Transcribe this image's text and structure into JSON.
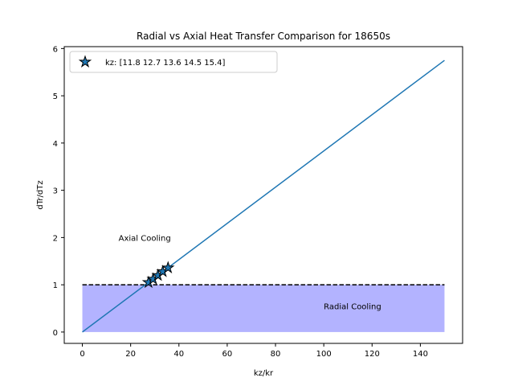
{
  "chart_data": {
    "type": "line",
    "title": "Radial vs Axial Heat Transfer Comparison for 18650s",
    "xlabel": "kz/kr",
    "ylabel": "dTr/dTz",
    "xlim": [
      -7.5,
      157.5
    ],
    "ylim": [
      -0.24,
      6.04
    ],
    "xticks": [
      0,
      20,
      40,
      60,
      80,
      100,
      120,
      140
    ],
    "yticks": [
      0,
      1,
      2,
      3,
      4,
      5,
      6
    ],
    "grid": false,
    "legend_position": "top-left",
    "colors": {
      "line": "#1f77b4",
      "markers": "#1f77b4",
      "marker_edge": "#000000",
      "region": "#b3b3ff",
      "threshold": "#000000"
    },
    "series": [
      {
        "type": "line",
        "x": [
          0,
          150
        ],
        "y": [
          0,
          5.75
        ]
      },
      {
        "name": "kz: [11.8 12.7 13.6 14.5 15.4]",
        "type": "scatter",
        "marker": "star",
        "x": [
          27.4,
          29.3,
          31.3,
          33.3,
          35.5
        ],
        "y": [
          1.05,
          1.12,
          1.2,
          1.28,
          1.36
        ]
      }
    ],
    "region": {
      "x": [
        0,
        150
      ],
      "y": [
        0,
        1
      ]
    },
    "threshold_line": {
      "y": 1,
      "x": [
        0,
        150
      ],
      "style": "dashed"
    },
    "annotations": [
      {
        "text": "Axial Cooling",
        "x": 15,
        "y": 2.0
      },
      {
        "text": "Radial Cooling",
        "x": 100,
        "y": 0.55
      }
    ]
  }
}
